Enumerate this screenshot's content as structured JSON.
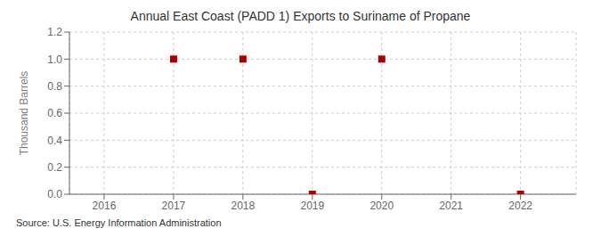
{
  "chart_data": {
    "type": "scatter",
    "title": "Annual East Coast (PADD 1) Exports to Suriname of Propane",
    "ylabel": "Thousand Barrels",
    "annotations": [
      "Source: U.S. Energy Information Administration"
    ],
    "x": [
      2017,
      2018,
      2019,
      2020,
      2022
    ],
    "values": [
      1.0,
      1.0,
      0.0,
      1.0,
      0.0
    ],
    "color": "#aa0000",
    "marker": "square",
    "xlim": [
      2015.5,
      2022.8
    ],
    "ylim": [
      0.0,
      1.2
    ],
    "xticks": [
      2016,
      2017,
      2018,
      2019,
      2020,
      2021,
      2022
    ],
    "yticks": [
      {
        "value": 0.0,
        "label": "0.0"
      },
      0.2,
      0.4,
      0.6,
      0.8,
      {
        "value": 1.0,
        "label": "1.0"
      },
      1.2
    ],
    "grid": true
  }
}
